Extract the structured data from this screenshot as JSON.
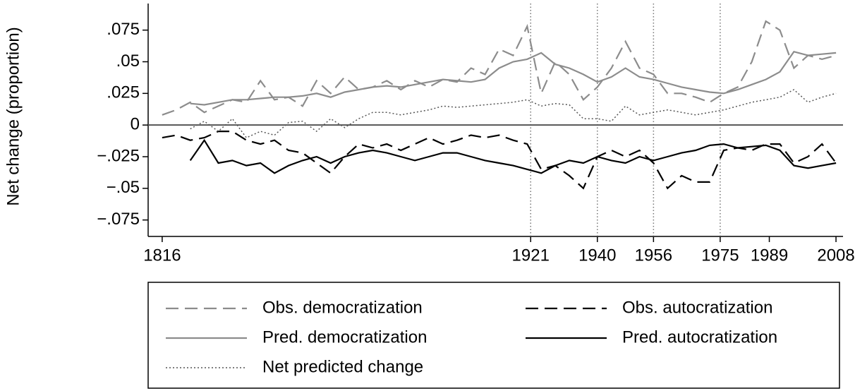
{
  "chart_data": {
    "type": "line",
    "y_label": "Net change (proportion)",
    "xlim": [
      1812,
      2010
    ],
    "ylim": [
      -0.088,
      0.096
    ],
    "xticks": [
      1816,
      1921,
      1940,
      1956,
      1975,
      1989,
      2008
    ],
    "yticks": [
      {
        "value": 0.075,
        "label": ".075"
      },
      {
        "value": 0.05,
        "label": ".05"
      },
      {
        "value": 0.025,
        "label": ".025"
      },
      0,
      {
        "value": -0.025,
        "label": "−.025"
      },
      {
        "value": -0.05,
        "label": "−.05"
      },
      {
        "value": -0.075,
        "label": "−.075"
      }
    ],
    "vlines": [
      1921,
      1940,
      1956,
      1975
    ],
    "x": [
      1816,
      1820,
      1824,
      1828,
      1832,
      1836,
      1840,
      1844,
      1848,
      1852,
      1856,
      1860,
      1864,
      1868,
      1872,
      1876,
      1880,
      1884,
      1888,
      1892,
      1896,
      1900,
      1904,
      1908,
      1912,
      1916,
      1920,
      1924,
      1928,
      1932,
      1936,
      1940,
      1944,
      1948,
      1952,
      1956,
      1960,
      1964,
      1968,
      1972,
      1976,
      1980,
      1984,
      1988,
      1992,
      1996,
      2000,
      2004,
      2008
    ],
    "series": [
      {
        "name": "Obs. democratization",
        "color": "#8c8c8c",
        "style": "dashed",
        "values": [
          0.008,
          0.012,
          0.018,
          0.01,
          0.015,
          0.02,
          0.018,
          0.035,
          0.02,
          0.022,
          0.015,
          0.035,
          0.025,
          0.038,
          0.028,
          0.03,
          0.035,
          0.028,
          0.035,
          0.03,
          0.036,
          0.034,
          0.045,
          0.04,
          0.06,
          0.055,
          0.078,
          0.025,
          0.05,
          0.04,
          0.02,
          0.03,
          0.045,
          0.066,
          0.045,
          0.04,
          0.025,
          0.025,
          0.022,
          0.018,
          0.025,
          0.03,
          0.05,
          0.082,
          0.075,
          0.045,
          0.055,
          0.052,
          0.055
        ]
      },
      {
        "name": "Obs. autocratization",
        "color": "#000000",
        "style": "dashed",
        "values": [
          -0.01,
          -0.008,
          -0.012,
          -0.01,
          -0.005,
          -0.005,
          -0.012,
          -0.015,
          -0.012,
          -0.02,
          -0.022,
          -0.03,
          -0.038,
          -0.025,
          -0.015,
          -0.018,
          -0.015,
          -0.02,
          -0.015,
          -0.01,
          -0.015,
          -0.012,
          -0.008,
          -0.01,
          -0.008,
          -0.012,
          -0.015,
          -0.035,
          -0.032,
          -0.04,
          -0.05,
          -0.025,
          -0.02,
          -0.025,
          -0.02,
          -0.03,
          -0.05,
          -0.04,
          -0.045,
          -0.045,
          -0.02,
          -0.018,
          -0.02,
          -0.015,
          -0.015,
          -0.03,
          -0.025,
          -0.015,
          -0.03
        ]
      },
      {
        "name": "Pred. democratization",
        "color": "#8c8c8c",
        "style": "solid",
        "values": [
          null,
          null,
          0.017,
          0.016,
          0.018,
          0.02,
          0.02,
          0.021,
          0.022,
          0.022,
          0.023,
          0.025,
          0.022,
          0.026,
          0.028,
          0.03,
          0.031,
          0.03,
          0.032,
          0.034,
          0.036,
          0.035,
          0.034,
          0.036,
          0.045,
          0.05,
          0.052,
          0.057,
          0.048,
          0.045,
          0.04,
          0.034,
          0.038,
          0.045,
          0.038,
          0.036,
          0.033,
          0.03,
          0.028,
          0.026,
          0.025,
          0.028,
          0.032,
          0.036,
          0.042,
          0.058,
          0.055,
          0.056,
          0.057
        ]
      },
      {
        "name": "Pred. autocratization",
        "color": "#000000",
        "style": "solid",
        "values": [
          null,
          null,
          -0.028,
          -0.012,
          -0.03,
          -0.028,
          -0.032,
          -0.03,
          -0.038,
          -0.032,
          -0.028,
          -0.025,
          -0.03,
          -0.025,
          -0.022,
          -0.02,
          -0.022,
          -0.025,
          -0.028,
          -0.025,
          -0.022,
          -0.022,
          -0.025,
          -0.028,
          -0.03,
          -0.032,
          -0.035,
          -0.038,
          -0.032,
          -0.028,
          -0.03,
          -0.025,
          -0.028,
          -0.03,
          -0.025,
          -0.028,
          -0.025,
          -0.022,
          -0.02,
          -0.016,
          -0.015,
          -0.018,
          -0.017,
          -0.016,
          -0.02,
          -0.032,
          -0.034,
          -0.032,
          -0.03
        ]
      },
      {
        "name": "Net predicted change",
        "color": "#555555",
        "style": "dotted",
        "values": [
          null,
          null,
          -0.003,
          0.003,
          -0.005,
          0.005,
          -0.01,
          -0.005,
          -0.008,
          0.002,
          0.003,
          -0.005,
          0.005,
          -0.002,
          0.005,
          0.01,
          0.01,
          0.008,
          0.01,
          0.012,
          0.015,
          0.014,
          0.015,
          0.016,
          0.017,
          0.018,
          0.02,
          0.015,
          0.017,
          0.016,
          0.005,
          0.005,
          0.003,
          0.015,
          0.008,
          0.01,
          0.012,
          0.01,
          0.008,
          0.01,
          0.012,
          0.015,
          0.018,
          0.02,
          0.022,
          0.028,
          0.018,
          0.022,
          0.025
        ]
      }
    ]
  }
}
